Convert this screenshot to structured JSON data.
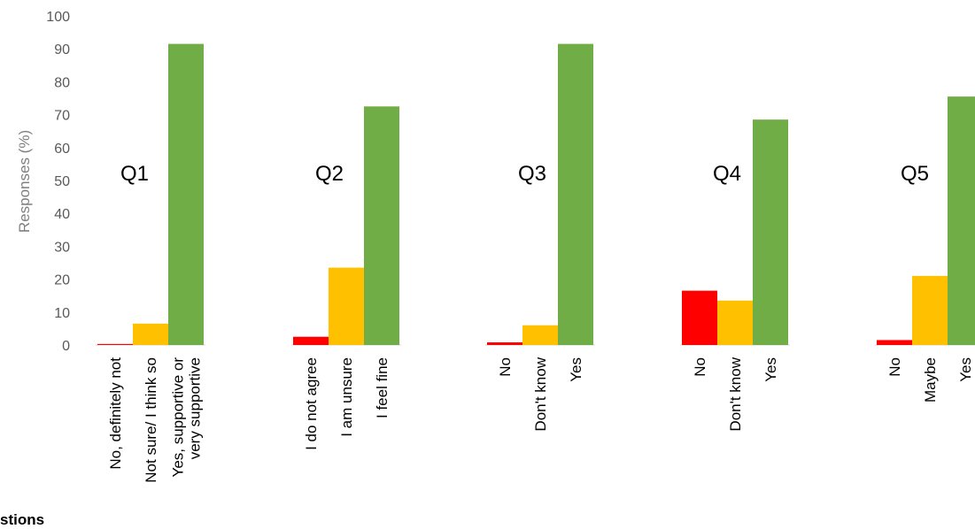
{
  "chart_data": {
    "type": "bar",
    "ylabel": "Responses (%)",
    "ylim": [
      0,
      100
    ],
    "yticks": [
      0,
      10,
      20,
      30,
      40,
      50,
      60,
      70,
      80,
      90,
      100
    ],
    "grid": false,
    "groups": [
      {
        "label": "Q1",
        "categories": [
          "No, definitely not",
          "Not sure/ I think so",
          "Yes, supportive or\nvery supportive"
        ],
        "values": [
          0.3,
          6.5,
          91.5
        ]
      },
      {
        "label": "Q2",
        "categories": [
          "I do not agree",
          "I am unsure",
          "I feel fine"
        ],
        "values": [
          2.5,
          23.5,
          72.5
        ]
      },
      {
        "label": "Q3",
        "categories": [
          "No",
          "Don't know",
          "Yes"
        ],
        "values": [
          0.8,
          6,
          91.5
        ]
      },
      {
        "label": "Q4",
        "categories": [
          "No",
          "Don't know",
          "Yes"
        ],
        "values": [
          16.5,
          13.5,
          68.5
        ]
      },
      {
        "label": "Q5",
        "categories": [
          "No",
          "Maybe",
          "Yes"
        ],
        "values": [
          1.5,
          21,
          75.5
        ]
      }
    ],
    "colors": [
      "#ff0000",
      "#ffc000",
      "#70ad47"
    ]
  },
  "footer_text": "stions"
}
